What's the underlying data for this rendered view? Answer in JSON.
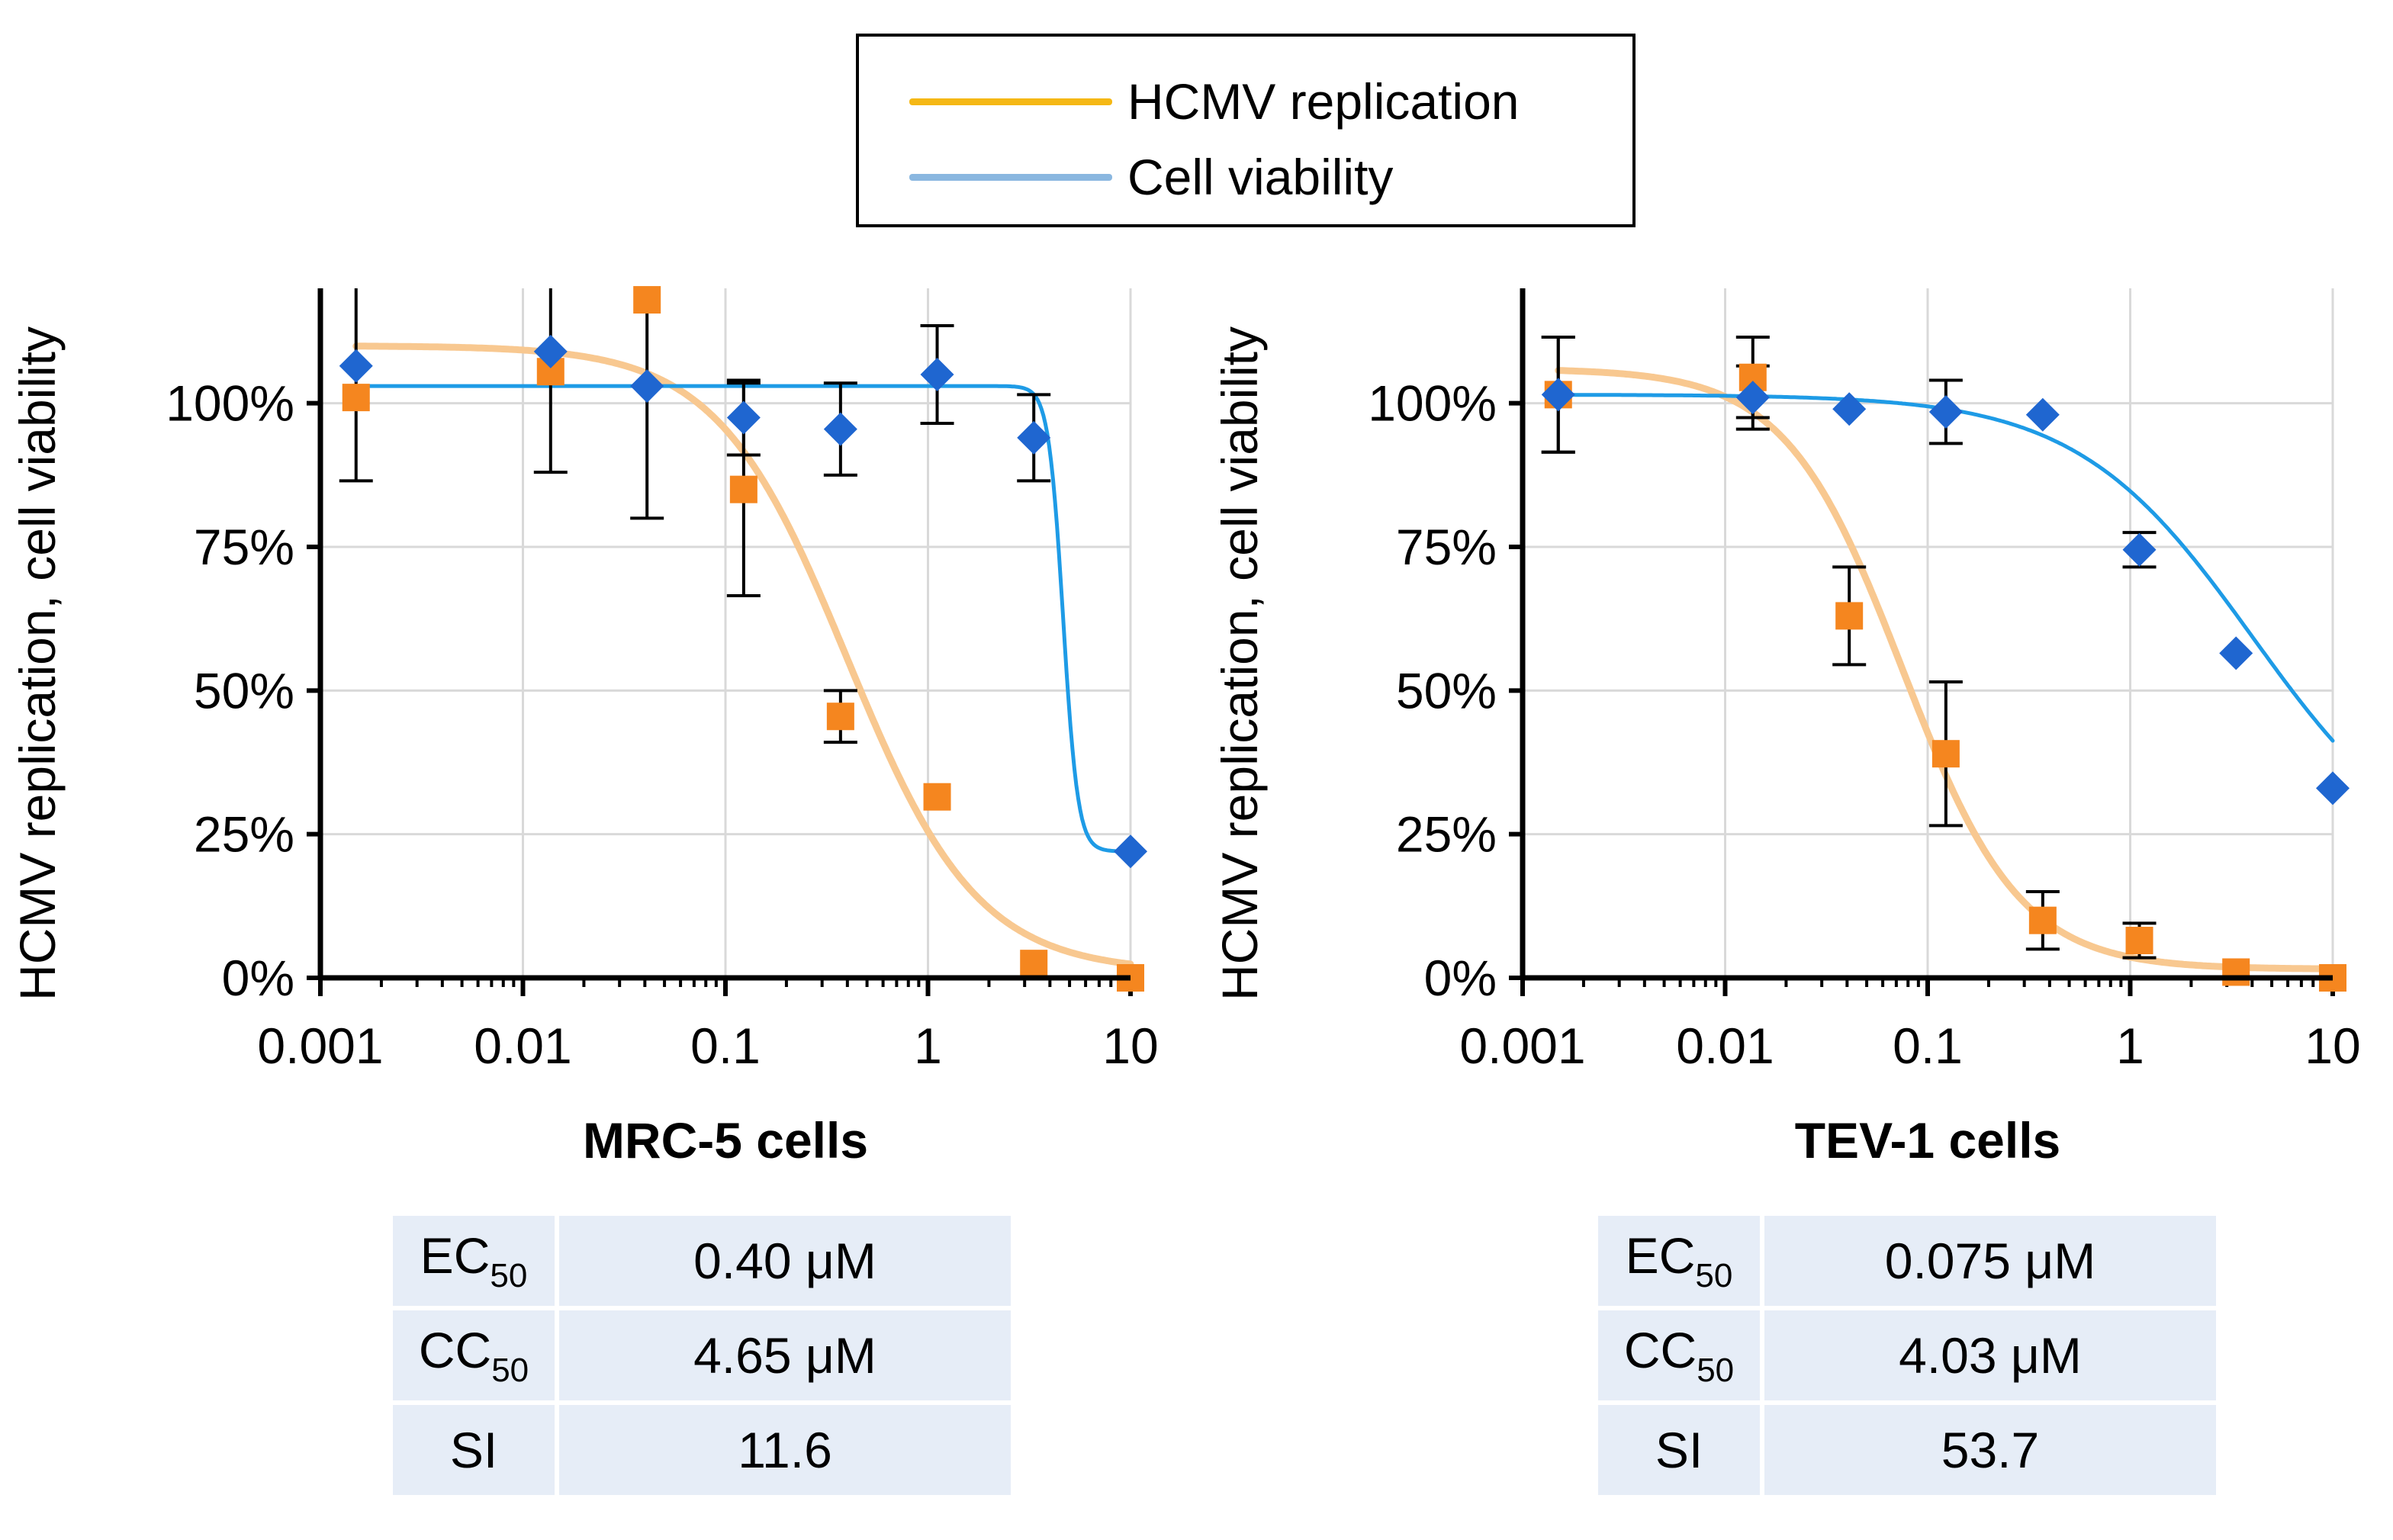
{
  "legend": {
    "replication_label": "HCMV replication",
    "viability_label": "Cell viability"
  },
  "colors": {
    "replication_line": "#f8c890",
    "replication_marker": "#f5861f",
    "replication_legend": "#f5b815",
    "viability_line": "#1e9be6",
    "viability_marker": "#1f66d0",
    "viability_legend": "#8ab7e0",
    "grid": "#d9d9d9",
    "table_cell": "#e6edf7"
  },
  "chart_data": [
    {
      "type": "scatter",
      "title": "MRC-5 cells",
      "xlabel": "MRC-5 cells",
      "ylabel": "HCMV replication, cell viability",
      "xscale": "log",
      "xlim": [
        0.001,
        10
      ],
      "ylim": [
        0,
        1.2
      ],
      "x_ticks": [
        "0.001",
        "0.01",
        "0.1",
        "1",
        "10"
      ],
      "y_ticks": [
        "0%",
        "25%",
        "50%",
        "75%",
        "100%"
      ],
      "series": [
        {
          "name": "HCMV replication",
          "marker": "square",
          "x": [
            0.0015,
            0.0137,
            0.041,
            0.123,
            0.37,
            1.11,
            3.33,
            10
          ],
          "y": [
            1.01,
            1.055,
            1.18,
            0.85,
            0.455,
            0.315,
            0.025,
            0.0
          ],
          "err": [
            0,
            0,
            0,
            0.185,
            0.045,
            0,
            0,
            0
          ],
          "fit": {
            "model": "4PL",
            "top": 1.1,
            "bottom": 0.01,
            "ec50": 0.4,
            "hill": 1.35
          }
        },
        {
          "name": "Cell viability",
          "marker": "diamond",
          "x": [
            0.0015,
            0.0137,
            0.041,
            0.123,
            0.37,
            1.11,
            3.33,
            10
          ],
          "y": [
            1.065,
            1.09,
            1.03,
            0.975,
            0.955,
            1.05,
            0.94,
            0.22
          ],
          "err": [
            0.2,
            0.21,
            0.23,
            0.065,
            0.08,
            0.085,
            0.075,
            0
          ],
          "fit": {
            "model": "4PL",
            "top": 1.03,
            "bottom": 0.22,
            "ec50": 4.65,
            "hill": 12
          }
        }
      ],
      "summary_table": [
        {
          "key": "EC",
          "sub": "50",
          "value": "0.40 μM"
        },
        {
          "key": "CC",
          "sub": "50",
          "value": "4.65 μM"
        },
        {
          "key": "SI",
          "sub": "",
          "value": "11.6"
        }
      ]
    },
    {
      "type": "scatter",
      "title": "TEV-1 cells",
      "xlabel": "TEV-1 cells",
      "ylabel": "HCMV replication, cell viability",
      "xscale": "log",
      "xlim": [
        0.001,
        10
      ],
      "ylim": [
        0,
        1.2
      ],
      "x_ticks": [
        "0.001",
        "0.01",
        "0.1",
        "1",
        "10"
      ],
      "y_ticks": [
        "0%",
        "25%",
        "50%",
        "75%",
        "100%"
      ],
      "series": [
        {
          "name": "HCMV replication",
          "marker": "square",
          "x": [
            0.0015,
            0.0137,
            0.041,
            0.123,
            0.37,
            1.11,
            3.33,
            10
          ],
          "y": [
            1.015,
            1.045,
            0.63,
            0.39,
            0.1,
            0.065,
            0.01,
            0.0
          ],
          "err": [
            0.1,
            0.07,
            0.085,
            0.125,
            0.05,
            0.03,
            0,
            0
          ],
          "fit": {
            "model": "4PL",
            "top": 1.06,
            "bottom": 0.015,
            "ec50": 0.075,
            "hill": 1.5
          }
        },
        {
          "name": "Cell viability",
          "marker": "diamond",
          "x": [
            0.0015,
            0.0137,
            0.041,
            0.123,
            0.37,
            1.11,
            3.33,
            10
          ],
          "y": [
            1.015,
            1.01,
            0.99,
            0.985,
            0.98,
            0.745,
            0.565,
            0.33
          ],
          "err": [
            0.1,
            0.055,
            0,
            0.055,
            0,
            0.03,
            0,
            0
          ],
          "fit": {
            "model": "4PL",
            "top": 1.015,
            "bottom": 0.17,
            "ec50": 4.03,
            "hill": 1.0
          }
        }
      ],
      "summary_table": [
        {
          "key": "EC",
          "sub": "50",
          "value": "0.075 μM"
        },
        {
          "key": "CC",
          "sub": "50",
          "value": "4.03 μM"
        },
        {
          "key": "SI",
          "sub": "",
          "value": "53.7"
        }
      ]
    }
  ]
}
